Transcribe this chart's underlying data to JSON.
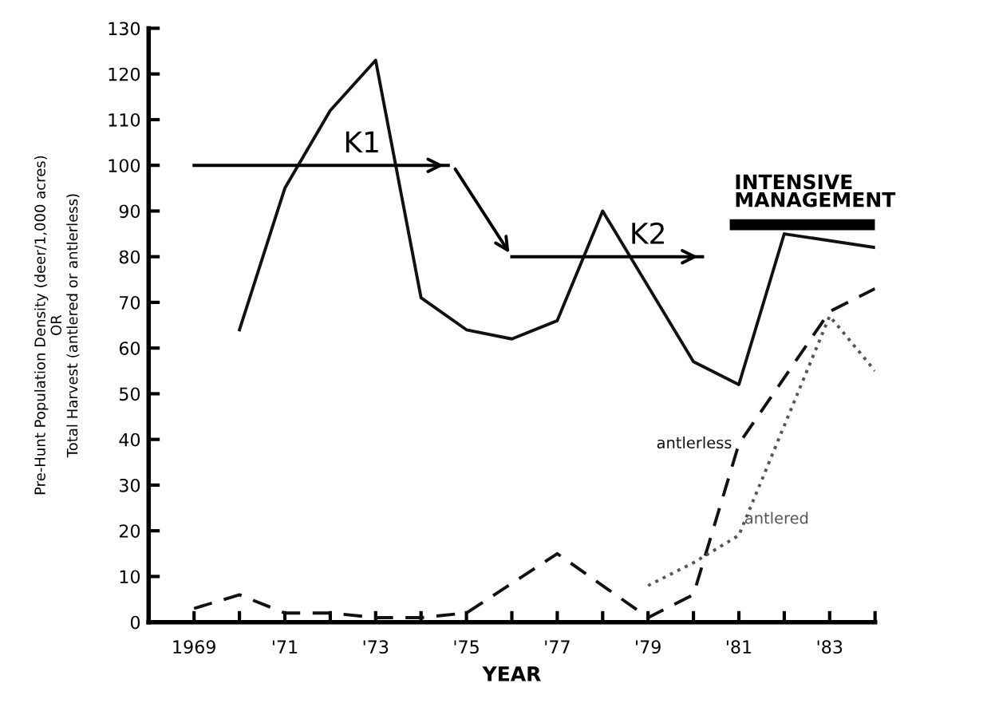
{
  "chart_data": {
    "type": "line",
    "xlabel": "YEAR",
    "ylabel": "Pre-Hunt Population Density (deer/1,000 acres)\nOR\nTotal Harvest (antlered or antlerless)",
    "series": [
      {
        "color": "#111111",
        "line_style": "solid",
        "x": [
          1970,
          1971,
          1972,
          1973,
          1974,
          1975,
          1976,
          1977,
          1978,
          1980,
          1981,
          1982,
          1984
        ],
        "values": [
          64,
          95,
          112,
          123,
          71,
          64,
          62,
          66,
          90,
          57,
          52,
          85,
          82
        ]
      },
      {
        "name": "antlerless",
        "color": "#111111",
        "line_style": "dashed",
        "x": [
          1969,
          1970,
          1971,
          1972,
          1973,
          1974,
          1975,
          1977,
          1979,
          1980,
          1981,
          1983,
          1984
        ],
        "values": [
          3,
          6,
          2,
          2,
          1,
          1,
          2,
          15,
          1,
          6,
          39,
          68,
          73
        ]
      },
      {
        "name": "antlered",
        "color": "#555555",
        "line_style": "dotted",
        "x": [
          1979,
          1980,
          1981,
          1983,
          1984
        ],
        "values": [
          8,
          13,
          19,
          67,
          55
        ]
      },
      {
        "name": "K1",
        "color": "#000000",
        "line_style": "solid",
        "x": [
          1969,
          1974.6
        ],
        "values": [
          100,
          100
        ]
      },
      {
        "name": "K2",
        "color": "#000000",
        "line_style": "solid",
        "x": [
          1976,
          1980.2
        ],
        "values": [
          80,
          80
        ]
      },
      {
        "name": "INTENSIVE\nMANAGEMENT",
        "color": "#000000",
        "line_style": "solid",
        "x": [
          1980.8,
          1984
        ],
        "values": [
          87,
          87
        ]
      }
    ],
    "xlim": [
      1968,
      1984
    ],
    "xticks": [
      {
        "value": 1969,
        "label": "1969"
      },
      {
        "value": 1970,
        "label": null
      },
      {
        "value": 1971,
        "label": "'71"
      },
      {
        "value": 1972,
        "label": null
      },
      {
        "value": 1973,
        "label": "'73"
      },
      {
        "value": 1974,
        "label": null
      },
      {
        "value": 1975,
        "label": "'75"
      },
      {
        "value": 1976,
        "label": null
      },
      {
        "value": 1977,
        "label": "'77"
      },
      {
        "value": 1978,
        "label": null
      },
      {
        "value": 1979,
        "label": "'79"
      },
      {
        "value": 1980,
        "label": null
      },
      {
        "value": 1981,
        "label": "'81"
      },
      {
        "value": 1982,
        "label": null
      },
      {
        "value": 1983,
        "label": "'83"
      },
      {
        "value": 1984,
        "label": null
      }
    ],
    "ylim": [
      0,
      130
    ],
    "yticks": [
      0,
      10,
      20,
      30,
      40,
      50,
      60,
      70,
      80,
      90,
      100,
      110,
      120,
      130
    ],
    "grid": false,
    "legend": false,
    "marker": "none"
  }
}
